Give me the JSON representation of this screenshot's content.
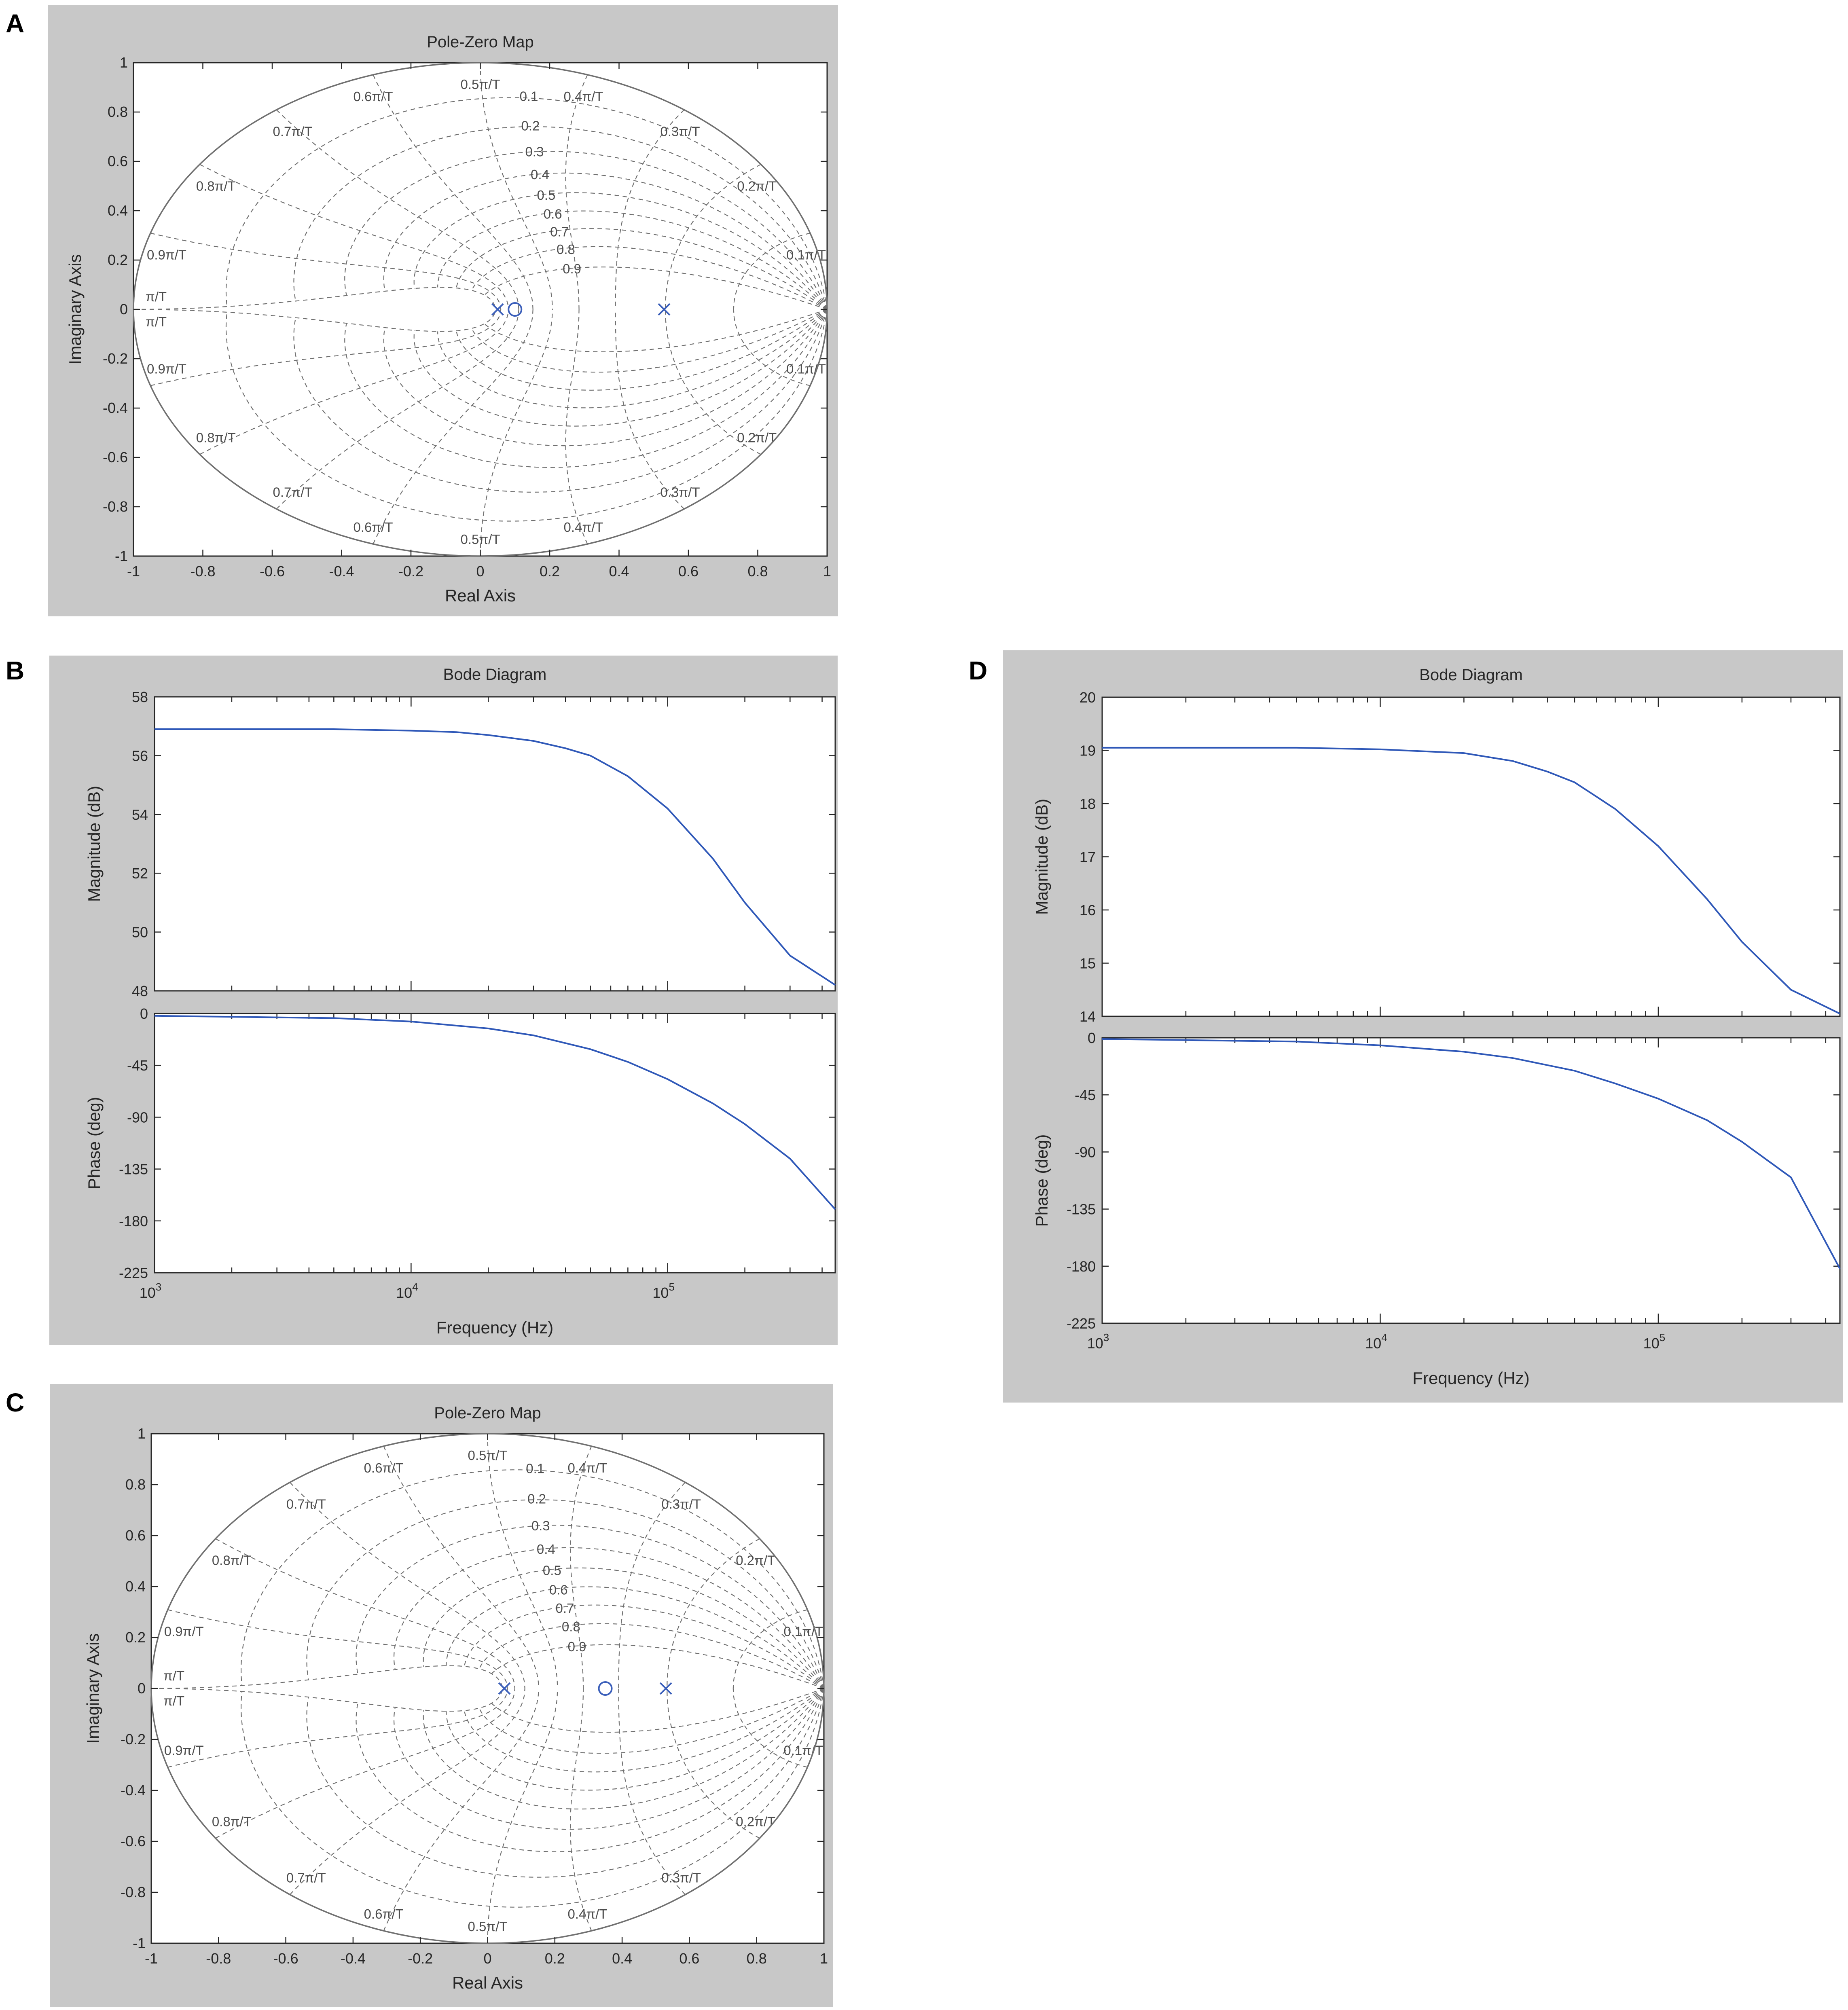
{
  "panels": [
    {
      "id": "A",
      "label": "A",
      "title": "Pole-Zero Map"
    },
    {
      "id": "B",
      "label": "B",
      "title": "Bode Diagram"
    },
    {
      "id": "C",
      "label": "C",
      "title": "Pole-Zero Map"
    },
    {
      "id": "D",
      "label": "D",
      "title": "Bode Diagram"
    }
  ],
  "colors": {
    "curve": "#2f58b8",
    "marker": "#3b5fba",
    "background": "#c8c8c8"
  },
  "chart_data": [
    {
      "panel": "A",
      "type": "scatter",
      "subtype": "pole-zero map (z-plane)",
      "title": "Pole-Zero Map",
      "xlabel": "Real Axis",
      "ylabel": "Imaginary Axis",
      "xlim": [
        -1,
        1
      ],
      "ylim": [
        -1,
        1
      ],
      "xticks": [
        "-1",
        "-0.8",
        "-0.6",
        "-0.4",
        "-0.2",
        "0",
        "0.2",
        "0.4",
        "0.6",
        "0.8",
        "1"
      ],
      "yticks": [
        "1",
        "0.8",
        "0.6",
        "0.4",
        "0.2",
        "0",
        "-0.2",
        "-0.4",
        "-0.6",
        "-0.8",
        "-1"
      ],
      "grid": "zgrid",
      "damping_labels": [
        "0.1",
        "0.2",
        "0.3",
        "0.4",
        "0.5",
        "0.6",
        "0.7",
        "0.8",
        "0.9"
      ],
      "freq_labels": [
        "0.1π/T",
        "0.2π/T",
        "0.3π/T",
        "0.4π/T",
        "0.5π/T",
        "0.6π/T",
        "0.7π/T",
        "0.8π/T",
        "0.9π/T",
        "π/T"
      ],
      "poles": [
        {
          "re": 0.05,
          "im": 0
        },
        {
          "re": 0.53,
          "im": 0
        }
      ],
      "zeros": [
        {
          "re": 0.1,
          "im": 0
        }
      ]
    },
    {
      "panel": "B",
      "type": "line",
      "subtype": "bode",
      "title": "Bode Diagram",
      "xlabel": "Frequency  (Hz)",
      "xscale": "log",
      "xlim": [
        1000,
        450000
      ],
      "xticks": [
        {
          "base": "10",
          "exp": "3"
        },
        {
          "base": "10",
          "exp": "4"
        },
        {
          "base": "10",
          "exp": "5"
        }
      ],
      "magnitude": {
        "ylabel": "Magnitude (dB)",
        "ylim": [
          48,
          58
        ],
        "yticks": [
          "58",
          "56",
          "54",
          "52",
          "50",
          "48"
        ],
        "x": [
          1000,
          5000,
          10000,
          15000,
          20000,
          30000,
          40000,
          50000,
          70000,
          100000,
          150000,
          200000,
          300000,
          450000
        ],
        "y": [
          56.9,
          56.9,
          56.85,
          56.8,
          56.7,
          56.5,
          56.25,
          56.0,
          55.3,
          54.2,
          52.5,
          51.0,
          49.2,
          48.2
        ]
      },
      "phase": {
        "ylabel": "Phase (deg)",
        "ylim": [
          -225,
          0
        ],
        "yticks": [
          "0",
          "-45",
          "-90",
          "-135",
          "-180",
          "-225"
        ],
        "x": [
          1000,
          5000,
          10000,
          20000,
          30000,
          50000,
          70000,
          100000,
          150000,
          200000,
          300000,
          450000
        ],
        "y": [
          -2,
          -4,
          -7,
          -13,
          -19,
          -31,
          -42,
          -57,
          -78,
          -96,
          -126,
          -170
        ]
      }
    },
    {
      "panel": "C",
      "type": "scatter",
      "subtype": "pole-zero map (z-plane)",
      "title": "Pole-Zero Map",
      "xlabel": "Real Axis",
      "ylabel": "Imaginary Axis",
      "xlim": [
        -1,
        1
      ],
      "ylim": [
        -1,
        1
      ],
      "xticks": [
        "-1",
        "-0.8",
        "-0.6",
        "-0.4",
        "-0.2",
        "0",
        "0.2",
        "0.4",
        "0.6",
        "0.8",
        "1"
      ],
      "yticks": [
        "1",
        "0.8",
        "0.6",
        "0.4",
        "0.2",
        "0",
        "-0.2",
        "-0.4",
        "-0.6",
        "-0.8",
        "-1"
      ],
      "grid": "zgrid",
      "damping_labels": [
        "0.1",
        "0.2",
        "0.3",
        "0.4",
        "0.5",
        "0.6",
        "0.7",
        "0.8",
        "0.9"
      ],
      "freq_labels": [
        "0.1π/T",
        "0.2π/T",
        "0.3π/T",
        "0.4π/T",
        "0.5π/T",
        "0.6π/T",
        "0.7π/T",
        "0.8π/T",
        "0.9π/T",
        "π/T"
      ],
      "poles": [
        {
          "re": 0.05,
          "im": 0
        },
        {
          "re": 0.53,
          "im": 0
        }
      ],
      "zeros": [
        {
          "re": 0.35,
          "im": 0
        }
      ]
    },
    {
      "panel": "D",
      "type": "line",
      "subtype": "bode",
      "title": "Bode Diagram",
      "xlabel": "Frequency  (Hz)",
      "xscale": "log",
      "xlim": [
        1000,
        450000
      ],
      "xticks": [
        {
          "base": "10",
          "exp": "3"
        },
        {
          "base": "10",
          "exp": "4"
        },
        {
          "base": "10",
          "exp": "5"
        }
      ],
      "magnitude": {
        "ylabel": "Magnitude (dB)",
        "ylim": [
          14,
          20
        ],
        "yticks": [
          "20",
          "19",
          "18",
          "17",
          "16",
          "15",
          "14"
        ],
        "x": [
          1000,
          5000,
          10000,
          20000,
          30000,
          40000,
          50000,
          70000,
          100000,
          150000,
          200000,
          300000,
          450000
        ],
        "y": [
          19.05,
          19.05,
          19.02,
          18.95,
          18.8,
          18.6,
          18.4,
          17.9,
          17.2,
          16.2,
          15.4,
          14.5,
          14.05
        ]
      },
      "phase": {
        "ylabel": "Phase (deg)",
        "ylim": [
          -225,
          0
        ],
        "yticks": [
          "0",
          "-45",
          "-90",
          "-135",
          "-180",
          "-225"
        ],
        "x": [
          1000,
          5000,
          10000,
          20000,
          30000,
          50000,
          70000,
          100000,
          150000,
          200000,
          300000,
          450000
        ],
        "y": [
          -1,
          -3,
          -6,
          -11,
          -16,
          -26,
          -36,
          -48,
          -65,
          -82,
          -110,
          -182
        ]
      }
    }
  ]
}
